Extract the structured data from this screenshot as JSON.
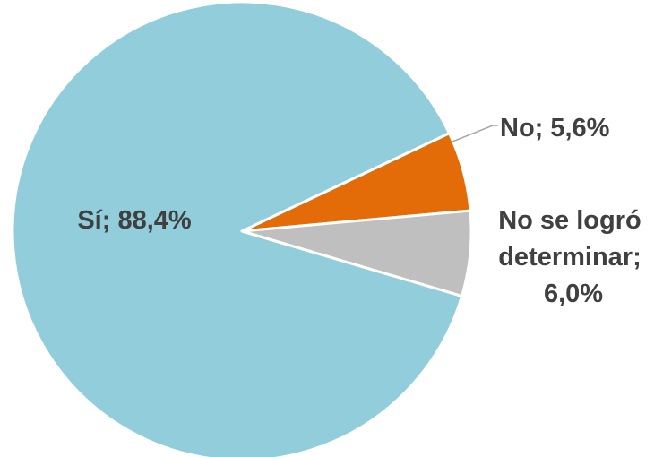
{
  "chart_data": {
    "type": "pie",
    "title": "",
    "slices": [
      {
        "label": "No",
        "value": 5.6,
        "display": "No; 5,6%",
        "color": "#e36c09"
      },
      {
        "label": "No se logró determinar",
        "value": 6.0,
        "display": "No se logró determinar; 6,0%",
        "color": "#bfbfbf"
      },
      {
        "label": "Sí",
        "value": 88.4,
        "display": "Sí; 88,4%",
        "color": "#92cddc"
      }
    ],
    "label_lines": {
      "no": [
        "No; 5,6%"
      ],
      "indeterminate": [
        "No se logró",
        "determinar;",
        "6,0%"
      ],
      "si": [
        "Sí; 88,4%"
      ]
    },
    "legend": "none",
    "data_labels": "outside-with-leader-lines"
  }
}
